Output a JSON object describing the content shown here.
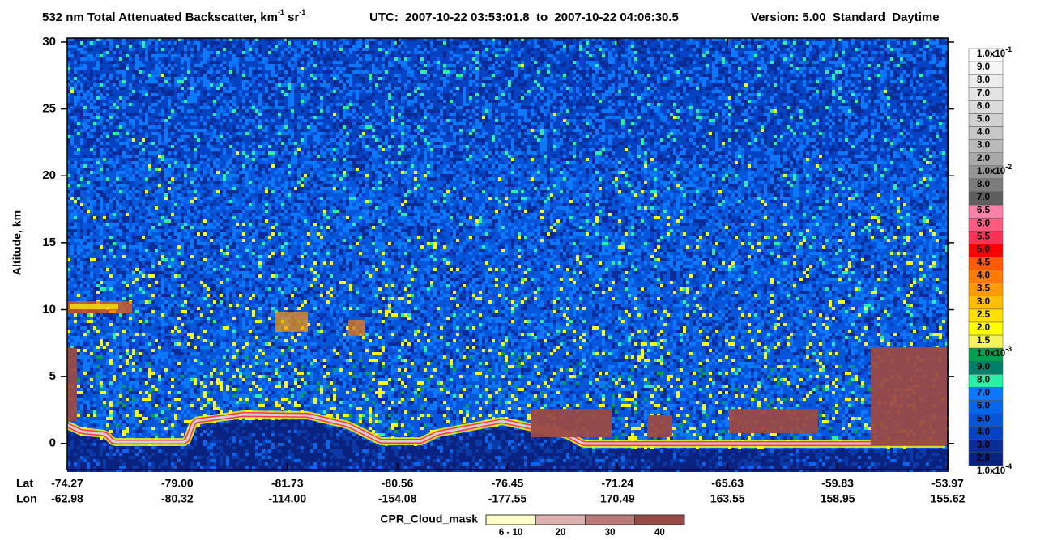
{
  "chart_data": {
    "type": "curtain",
    "title": {
      "text": "532 nm Total Attenuated Backscatter, km",
      "sup1": "-1",
      "unit2": " sr",
      "sup2": "-1"
    },
    "utc": "UTC:  2007-10-22 03:53:01.8  to  2007-10-22 04:06:30.5",
    "version": "Version: 5.00  Standard  Daytime",
    "ylabel": "Altitude, km",
    "ylim": [
      -1.95,
      30.3
    ],
    "yticks": [
      0,
      5,
      10,
      15,
      20,
      25,
      30
    ],
    "x_rows": [
      "Lat",
      "Lon"
    ],
    "lat": [
      "-74.27",
      "-79.00",
      "-81.73",
      "-80.56",
      "-76.45",
      "-71.24",
      "-65.63",
      "-59.83",
      "-53.97"
    ],
    "lon": [
      "-62.98",
      "-80.32",
      "-114.00",
      "-154.08",
      "-177.55",
      "170.49",
      "163.55",
      "158.95",
      "155.62"
    ],
    "colorbar": {
      "labels": [
        {
          "text": "1.0x10",
          "sup": "-1"
        },
        "9.0",
        "8.0",
        "7.0",
        "6.0",
        "5.0",
        "4.0",
        "3.0",
        "2.0",
        {
          "text": "1.0x10",
          "sup": "-2"
        },
        "8.0",
        "7.0",
        "6.5",
        "6.0",
        "5.5",
        "5.0",
        "4.5",
        "4.0",
        "3.5",
        "3.0",
        "2.5",
        "2.0",
        "1.5",
        {
          "text": "1.0x10",
          "sup": "-3"
        },
        "9.0",
        "8.0",
        "7.0",
        "6.0",
        "5.0",
        "4.0",
        "3.0",
        "2.0",
        {
          "text": "1.0x10",
          "sup": "-4"
        }
      ],
      "colors": [
        "#ffffff",
        "#f6f6f6",
        "#ededed",
        "#e4e4e4",
        "#dbdbdb",
        "#d1d1d1",
        "#c7c7c7",
        "#bababa",
        "#aaaaaa",
        "#959595",
        "#7c7c7c",
        "#5e5e5e",
        "#ff80a8",
        "#ff5a80",
        "#ff3355",
        "#ff0000",
        "#ff5a00",
        "#ff7c00",
        "#ff9a00",
        "#ffbe00",
        "#ffe000",
        "#ffff00",
        "#f4f45a",
        "#00a050",
        "#00806a",
        "#28f0a8",
        "#0a78ff",
        "#0866ee",
        "#0656dc",
        "#0444c4",
        "#0a2c96",
        "#082282"
      ]
    },
    "cloud_mask": {
      "title": "CPR_Cloud_mask",
      "labels": [
        "6 - 10",
        "20",
        "30",
        "40"
      ],
      "colors": [
        "#fffcc8",
        "#dcb0ae",
        "#bb7c79",
        "#9a4a46"
      ]
    }
  }
}
